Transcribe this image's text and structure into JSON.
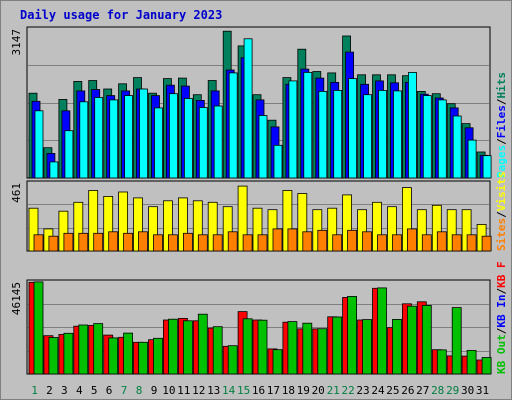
{
  "title": "Daily usage for January 2023",
  "chart_data": [
    {
      "type": "bar",
      "panel": "top",
      "ymax_label": "3147",
      "ylim": [
        0,
        3147
      ],
      "categories": [
        "1",
        "2",
        "3",
        "4",
        "5",
        "6",
        "7",
        "8",
        "9",
        "10",
        "11",
        "12",
        "13",
        "14",
        "15",
        "16",
        "17",
        "18",
        "19",
        "20",
        "21",
        "22",
        "23",
        "24",
        "25",
        "26",
        "27",
        "28",
        "29",
        "30",
        "31"
      ],
      "weekend_days": [
        "1",
        "7",
        "8",
        "14",
        "15",
        "21",
        "22",
        "28",
        "29"
      ],
      "legend": [
        {
          "label": "Hits",
          "color": "#00805c"
        },
        {
          "label": "Files",
          "color": "#0000ff"
        },
        {
          "label": "Pages",
          "color": "#00ffff"
        }
      ],
      "separator": "/",
      "series": [
        {
          "name": "Hits",
          "color": "#00805c",
          "values": [
            1790,
            640,
            1660,
            2040,
            2060,
            1880,
            1990,
            2120,
            1790,
            2100,
            2110,
            1760,
            2060,
            3100,
            2790,
            1760,
            1220,
            2120,
            2720,
            2250,
            2220,
            3000,
            2180,
            2180,
            2180,
            2160,
            1830,
            1780,
            1570,
            1150,
            550
          ]
        },
        {
          "name": "Files",
          "color": "#0000ff",
          "values": [
            1620,
            520,
            1420,
            1840,
            1870,
            1740,
            1840,
            1880,
            1740,
            1960,
            1940,
            1640,
            1840,
            2280,
            2540,
            1650,
            1080,
            1980,
            2300,
            2110,
            2020,
            2660,
            1980,
            2050,
            2010,
            2020,
            1770,
            1690,
            1480,
            1060,
            480
          ]
        },
        {
          "name": "Pages",
          "color": "#00ffff",
          "values": [
            1420,
            340,
            1000,
            1610,
            1700,
            1650,
            1740,
            1880,
            1480,
            1780,
            1680,
            1490,
            1520,
            2220,
            2940,
            1320,
            690,
            2050,
            2230,
            1830,
            1850,
            2100,
            1760,
            1850,
            1840,
            2230,
            1740,
            1650,
            1310,
            800,
            470
          ]
        }
      ]
    },
    {
      "type": "bar",
      "panel": "middle",
      "ymax_label": "461",
      "ylim": [
        0,
        461
      ],
      "categories": [
        "1",
        "2",
        "3",
        "4",
        "5",
        "6",
        "7",
        "8",
        "9",
        "10",
        "11",
        "12",
        "13",
        "14",
        "15",
        "16",
        "17",
        "18",
        "19",
        "20",
        "21",
        "22",
        "23",
        "24",
        "25",
        "26",
        "27",
        "28",
        "29",
        "30",
        "31"
      ],
      "legend": [
        {
          "label": "Visits",
          "color": "#ffff00"
        },
        {
          "label": "Sites",
          "color": "#ff8000"
        }
      ],
      "separator": "/",
      "series": [
        {
          "name": "Visits",
          "color": "#ffff00",
          "values": [
            290,
            150,
            270,
            330,
            410,
            370,
            400,
            360,
            300,
            340,
            360,
            340,
            330,
            300,
            440,
            290,
            280,
            410,
            390,
            280,
            290,
            380,
            280,
            330,
            300,
            430,
            280,
            310,
            280,
            280,
            180
          ]
        },
        {
          "name": "Sites",
          "color": "#ff8000",
          "values": [
            110,
            100,
            120,
            120,
            120,
            130,
            120,
            130,
            110,
            110,
            120,
            110,
            110,
            130,
            110,
            110,
            150,
            150,
            130,
            140,
            110,
            140,
            130,
            110,
            110,
            150,
            110,
            130,
            110,
            110,
            100
          ]
        }
      ]
    },
    {
      "type": "bar",
      "panel": "bottom",
      "ymax_label": "46145",
      "ylim": [
        0,
        46145
      ],
      "categories": [
        "1",
        "2",
        "3",
        "4",
        "5",
        "6",
        "7",
        "8",
        "9",
        "10",
        "11",
        "12",
        "13",
        "14",
        "15",
        "16",
        "17",
        "18",
        "19",
        "20",
        "21",
        "22",
        "23",
        "24",
        "25",
        "26",
        "27",
        "28",
        "29",
        "30",
        "31"
      ],
      "legend": [
        {
          "label": "KB F",
          "color": "#ff0000"
        },
        {
          "label": "KB In",
          "color": "#0000ff"
        },
        {
          "label": "KB Out",
          "color": "#00c000"
        }
      ],
      "separator": "/",
      "series": [
        {
          "name": "KB F",
          "color": "#ff0000",
          "values": [
            46000,
            19200,
            19800,
            24000,
            24400,
            19500,
            18400,
            15900,
            17200,
            27100,
            27900,
            26700,
            23000,
            13900,
            31300,
            27100,
            12600,
            26000,
            22600,
            22600,
            28700,
            38400,
            27100,
            43000,
            23200,
            35200,
            36200,
            12200,
            9100,
            9000,
            7000
          ]
        },
        {
          "name": "KB Out",
          "color": "#00c000",
          "values": [
            46200,
            18300,
            20400,
            24600,
            25300,
            18100,
            20500,
            15900,
            17900,
            27500,
            26700,
            30000,
            23700,
            14200,
            27700,
            27000,
            12200,
            26300,
            25500,
            22700,
            28600,
            38900,
            27300,
            43200,
            27400,
            34000,
            34400,
            12100,
            33300,
            11800,
            8300
          ]
        }
      ]
    }
  ]
}
